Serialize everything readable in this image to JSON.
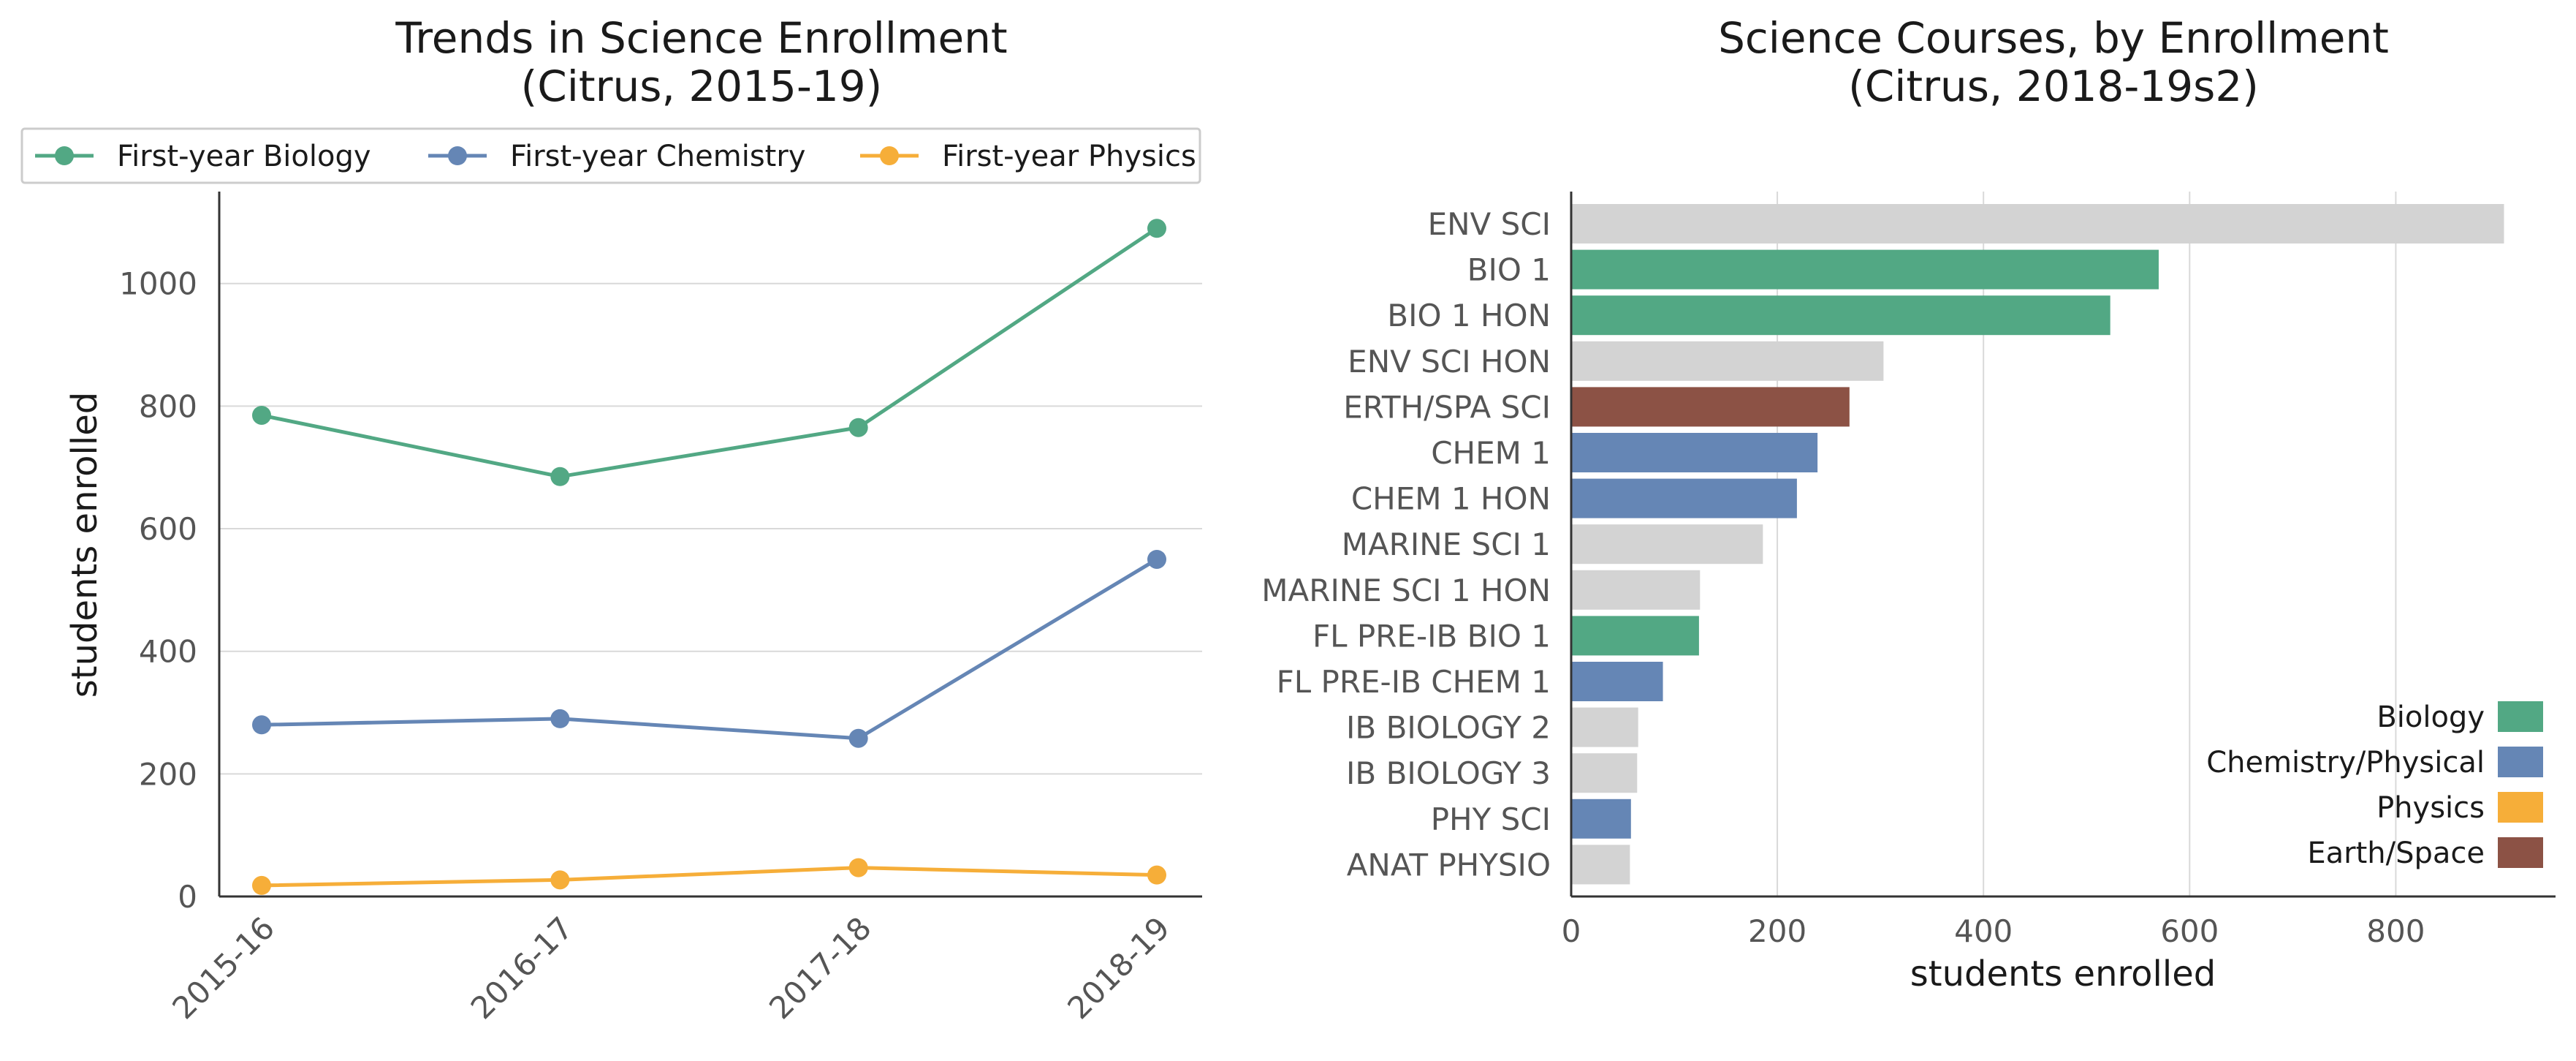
{
  "colors": {
    "biology": "#52A884",
    "chemistry": "#6586B5",
    "physics": "#F6AE39",
    "earth": "#8C5245",
    "other": "#D3D3D3"
  },
  "chart_data": [
    {
      "type": "line",
      "title_line1": "Trends in Science Enrollment",
      "title_line2": "(Citrus, 2015-19)",
      "xlabel": "",
      "ylabel": "students enrolled",
      "categories": [
        "2015-16",
        "2016-17",
        "2017-18",
        "2018-19"
      ],
      "ylim": [
        0,
        1150
      ],
      "yticks": [
        0,
        200,
        400,
        600,
        800,
        1000
      ],
      "grid": "horizontal",
      "legend_position": "top",
      "series": [
        {
          "name": "First-year Biology",
          "color_key": "biology",
          "values": [
            785,
            685,
            765,
            1090
          ]
        },
        {
          "name": "First-year Chemistry",
          "color_key": "chemistry",
          "values": [
            280,
            290,
            258,
            550
          ]
        },
        {
          "name": "First-year Physics",
          "color_key": "physics",
          "values": [
            18,
            27,
            47,
            35
          ]
        }
      ]
    },
    {
      "type": "bar",
      "orientation": "horizontal",
      "title_line1": "Science Courses, by Enrollment",
      "title_line2": "(Citrus, 2018-19s2)",
      "xlabel": "students enrolled",
      "ylabel": "",
      "xlim": [
        0,
        955
      ],
      "xticks": [
        0,
        200,
        400,
        600,
        800
      ],
      "grid": "vertical",
      "legend_position": "bottom-right",
      "legend": [
        {
          "label": "Biology",
          "color_key": "biology"
        },
        {
          "label": "Chemistry/Physical",
          "color_key": "chemistry"
        },
        {
          "label": "Physics",
          "color_key": "physics"
        },
        {
          "label": "Earth/Space",
          "color_key": "earth"
        }
      ],
      "bars": [
        {
          "label": "ENV SCI",
          "value": 905,
          "color_key": "other"
        },
        {
          "label": "BIO 1",
          "value": 570,
          "color_key": "biology"
        },
        {
          "label": "BIO 1 HON",
          "value": 523,
          "color_key": "biology"
        },
        {
          "label": "ENV SCI HON",
          "value": 303,
          "color_key": "other"
        },
        {
          "label": "ERTH/SPA SCI",
          "value": 270,
          "color_key": "earth"
        },
        {
          "label": "CHEM 1",
          "value": 239,
          "color_key": "chemistry"
        },
        {
          "label": "CHEM 1 HON",
          "value": 219,
          "color_key": "chemistry"
        },
        {
          "label": "MARINE SCI 1",
          "value": 186,
          "color_key": "other"
        },
        {
          "label": "MARINE SCI 1 HON",
          "value": 125,
          "color_key": "other"
        },
        {
          "label": "FL PRE-IB BIO 1",
          "value": 124,
          "color_key": "biology"
        },
        {
          "label": "FL PRE-IB CHEM 1",
          "value": 89,
          "color_key": "chemistry"
        },
        {
          "label": "IB BIOLOGY 2",
          "value": 65,
          "color_key": "other"
        },
        {
          "label": "IB BIOLOGY 3",
          "value": 64,
          "color_key": "other"
        },
        {
          "label": "PHY SCI",
          "value": 58,
          "color_key": "chemistry"
        },
        {
          "label": "ANAT PHYSIO",
          "value": 57,
          "color_key": "other"
        }
      ]
    }
  ]
}
